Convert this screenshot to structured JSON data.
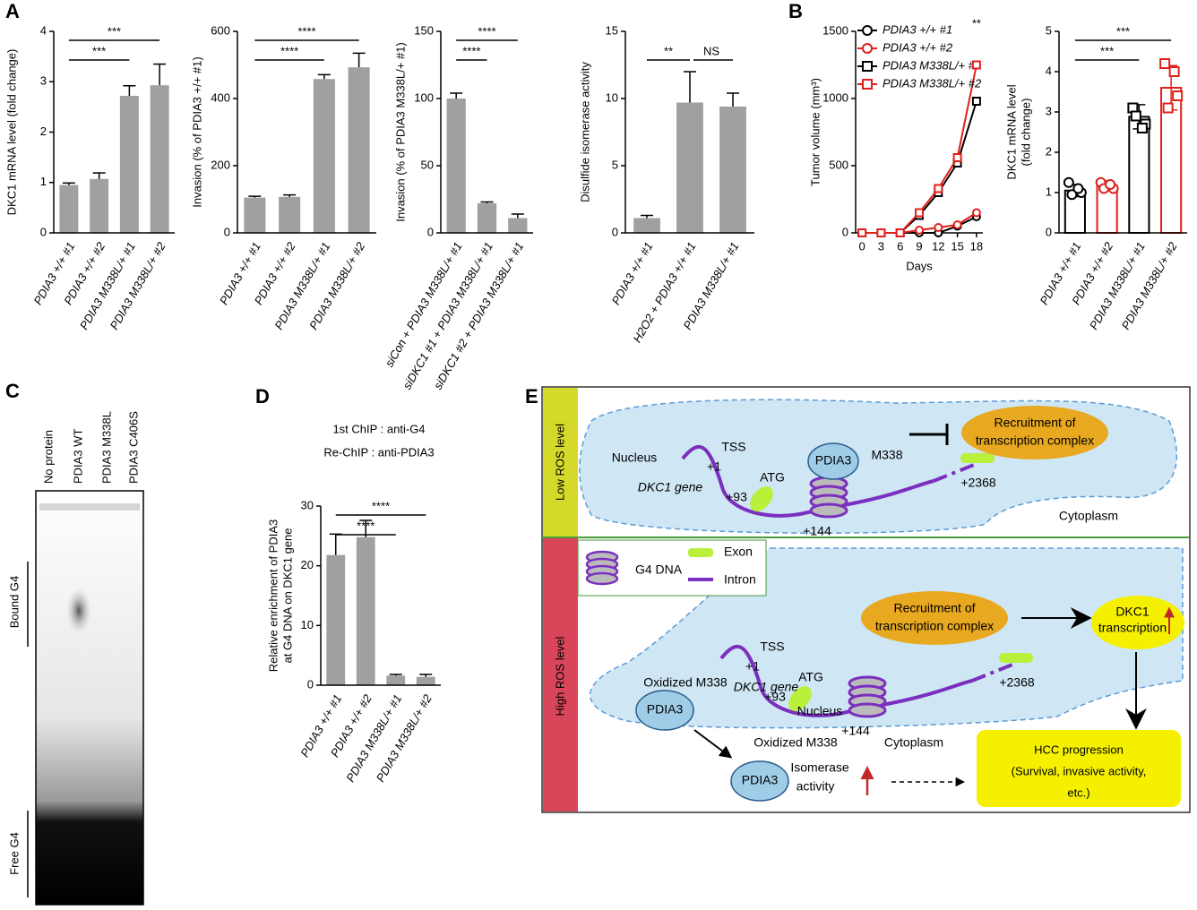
{
  "panels": [
    "A",
    "B",
    "C",
    "D",
    "E"
  ],
  "chart_data": [
    {
      "type": "bar",
      "ylabel": "DKC1 mRNA level (fold change)",
      "categories": [
        "PDIA3 +/+ #1",
        "PDIA3 +/+ #2",
        "PDIA3 M338L/+ #1",
        "PDIA3 M338L/+ #2"
      ],
      "values": [
        0.95,
        1.07,
        2.72,
        2.93
      ],
      "errors": [
        0.04,
        0.12,
        0.2,
        0.42
      ],
      "color": "#a0a0a0",
      "ylim": [
        0,
        4
      ],
      "yticks": [
        0,
        1,
        2,
        3,
        4
      ],
      "significance": [
        {
          "from": 0,
          "to": 2,
          "label": "***"
        },
        {
          "from": 0,
          "to": 3,
          "label": "***"
        }
      ]
    },
    {
      "type": "bar",
      "ylabel": "Invasion (% of PDIA3 +/+ #1)",
      "categories": [
        "PDIA3 +/+ #1",
        "PDIA3 +/+ #2",
        "PDIA3 M338L/+ #1",
        "PDIA3 M338L/+ #2"
      ],
      "values": [
        105,
        107,
        458,
        493
      ],
      "errors": [
        4,
        6,
        13,
        42
      ],
      "color": "#a0a0a0",
      "ylim": [
        0,
        600
      ],
      "yticks": [
        0,
        200,
        400,
        600
      ],
      "significance": [
        {
          "from": 0,
          "to": 2,
          "label": "****"
        },
        {
          "from": 0,
          "to": 3,
          "label": "****"
        }
      ]
    },
    {
      "type": "bar",
      "ylabel": "Invasion (% of PDIA3 M338L/+ #1)",
      "categories": [
        "siCon + PDIA3 M338L/+ #1",
        "siDKC1 #1 + PDIA3 M338L/+ #1",
        "siDKC1 #2 + PDIA3 M338L/+ #1"
      ],
      "values": [
        100,
        22,
        11
      ],
      "errors": [
        4,
        1,
        3
      ],
      "color": "#a0a0a0",
      "ylim": [
        0,
        150
      ],
      "yticks": [
        0,
        50,
        100,
        150
      ],
      "significance": [
        {
          "from": 0,
          "to": 1,
          "label": "****"
        },
        {
          "from": 0,
          "to": 2,
          "label": "****"
        }
      ]
    },
    {
      "type": "bar",
      "ylabel": "Disulfide isomerase activity",
      "categories": [
        "PDIA3 +/+ #1",
        "H2O2 + PDIA3 +/+ #1",
        "PDIA3 M338L/+ #1"
      ],
      "values": [
        1.1,
        9.7,
        9.4
      ],
      "errors": [
        0.2,
        2.3,
        1.0
      ],
      "color": "#a0a0a0",
      "ylim": [
        0,
        15
      ],
      "yticks": [
        0,
        5,
        10,
        15
      ],
      "significance": [
        {
          "from": 0,
          "to": 1,
          "label": "**"
        },
        {
          "from": 1,
          "to": 2,
          "label": "NS"
        }
      ]
    },
    {
      "type": "line",
      "ylabel": "Tumor volume (mm³)",
      "xlabel": "Days",
      "x": [
        0,
        3,
        6,
        9,
        12,
        15,
        18
      ],
      "xlim": [
        -1,
        19
      ],
      "xticks": [
        0,
        3,
        6,
        9,
        12,
        15,
        18
      ],
      "ylim": [
        0,
        1500
      ],
      "yticks": [
        0,
        500,
        1000,
        1500
      ],
      "annotation": "**",
      "series": [
        {
          "name": "PDIA3 +/+ #1",
          "color": "#000000",
          "marker": "circle",
          "values": [
            0,
            0,
            0,
            0,
            0,
            50,
            120
          ]
        },
        {
          "name": "PDIA3 +/+ #2",
          "color": "#e0201b",
          "marker": "circle",
          "values": [
            0,
            0,
            0,
            20,
            40,
            60,
            150
          ]
        },
        {
          "name": "PDIA3 M338L/+ #1",
          "color": "#000000",
          "marker": "square",
          "values": [
            0,
            0,
            0,
            130,
            300,
            520,
            980
          ]
        },
        {
          "name": "PDIA3 M338L/+ #2",
          "color": "#e0201b",
          "marker": "square",
          "values": [
            0,
            0,
            0,
            150,
            330,
            560,
            1250
          ]
        }
      ]
    },
    {
      "type": "dotbar",
      "ylabel": [
        "DKC1 mRNA level",
        "(fold change)"
      ],
      "categories": [
        "PDIA3 +/+ #1",
        "PDIA3 +/+ #2",
        "PDIA3 M338L/+ #1",
        "PDIA3 M338L/+ #2"
      ],
      "values": [
        1.05,
        1.17,
        2.88,
        3.6
      ],
      "errors": [
        0.15,
        0.12,
        0.3,
        0.55
      ],
      "colors": [
        "#000000",
        "#e0201b",
        "#000000",
        "#e0201b"
      ],
      "markers": [
        "circle",
        "circle",
        "square",
        "square"
      ],
      "points": [
        [
          1.25,
          1.0,
          0.95,
          1.1
        ],
        [
          1.25,
          1.1,
          1.1,
          1.2
        ],
        [
          3.1,
          2.7,
          2.9,
          2.6
        ],
        [
          4.2,
          3.4,
          3.1,
          4.0
        ]
      ],
      "ylim": [
        0,
        5
      ],
      "yticks": [
        0,
        1,
        2,
        3,
        4,
        5
      ],
      "significance": [
        {
          "from": 0,
          "to": 2,
          "label": "***"
        },
        {
          "from": 0,
          "to": 3,
          "label": "***"
        }
      ]
    },
    {
      "type": "bar",
      "ylabel": [
        "Relative enrichment of PDIA3",
        "at G4 DNA on DKC1 gene"
      ],
      "notes": [
        "1st ChIP : anti-G4",
        "Re-ChIP : anti-PDIA3"
      ],
      "categories": [
        "PDIA3 +/+ #1",
        "PDIA3 +/+ #2",
        "PDIA3 M338L/+ #1",
        "PDIA3 M338L/+ #2"
      ],
      "values": [
        21.8,
        24.8,
        1.6,
        1.4
      ],
      "errors": [
        3.5,
        2.8,
        0.2,
        0.4
      ],
      "color": "#a0a0a0",
      "ylim": [
        0,
        30
      ],
      "yticks": [
        0,
        10,
        20,
        30
      ],
      "significance": [
        {
          "from": 0,
          "to": 2,
          "label": "****"
        },
        {
          "from": 0,
          "to": 3,
          "label": "****"
        }
      ]
    }
  ],
  "gel": {
    "lanes": [
      "No protein",
      "PDIA3 WT",
      "PDIA3 M338L",
      "PDIA3 C406S"
    ],
    "bound": "Bound G4",
    "free": "Free G4"
  },
  "diagram": {
    "low": {
      "level": "Low ROS level",
      "nucleus": "Nucleus",
      "gene": "DKC1 gene",
      "tss": "TSS",
      "plus1": "+1",
      "atg": "ATG",
      "plus93": "+93",
      "plus144": "+144",
      "plus2368": "+2368",
      "pdia3": "PDIA3",
      "m338": "M338",
      "recruit1": "Recruitment of",
      "recruit2": "transcription complex",
      "cytoplasm": "Cytoplasm"
    },
    "legend": {
      "g4": "G4 DNA",
      "exon": "Exon",
      "intron": "Intron"
    },
    "high": {
      "level": "High ROS level",
      "nucleus": "Nucleus",
      "gene": "DKC1 gene",
      "tss": "TSS",
      "plus1": "+1",
      "atg": "ATG",
      "plus93": "+93",
      "plus144": "+144",
      "plus2368": "+2368",
      "pdia3": "PDIA3",
      "oxidized": "Oxidized M338",
      "pdia3b": "PDIA3",
      "oxidizedb": "Oxidized M338",
      "recruit1": "Recruitment of",
      "recruit2": "transcription complex",
      "cytoplasm": "Cytoplasm",
      "dkc1a": "DKC1",
      "dkc1b": "transcription",
      "isomerase1": "Isomerase",
      "isomerase2": "activity",
      "hcc1": "HCC progression",
      "hcc2": "(Survival, invasive activity,",
      "hcc3": "etc.)"
    }
  }
}
